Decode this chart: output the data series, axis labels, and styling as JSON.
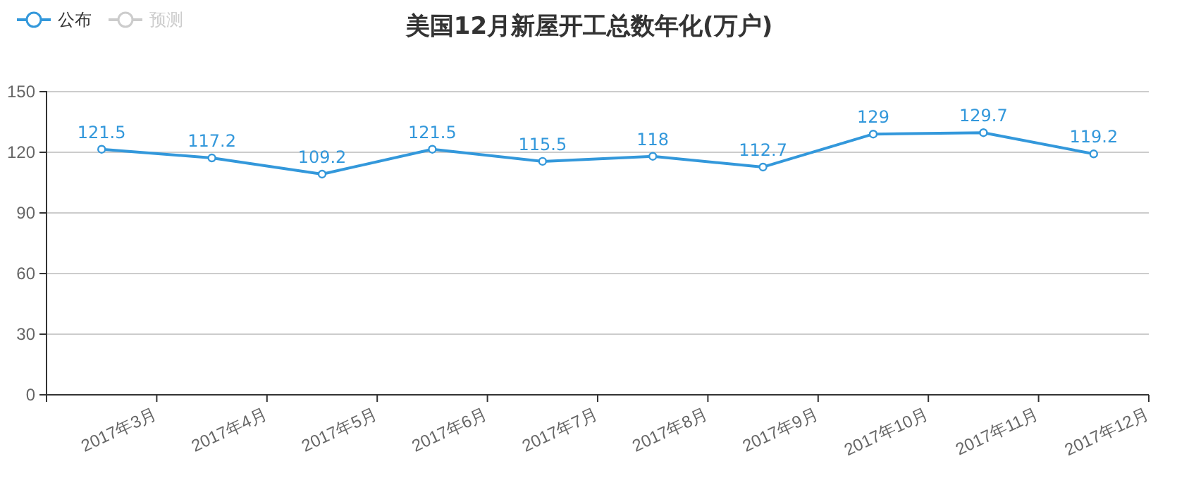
{
  "chart_data": {
    "type": "line",
    "title": "美国12月新屋开工总数年化(万户)",
    "categories": [
      "2017年3月",
      "2017年4月",
      "2017年5月",
      "2017年6月",
      "2017年7月",
      "2017年8月",
      "2017年9月",
      "2017年10月",
      "2017年11月",
      "2017年12月"
    ],
    "series": [
      {
        "name": "公布",
        "color": "#3398db",
        "values": [
          121.5,
          117.2,
          109.2,
          121.5,
          115.5,
          118,
          112.7,
          129,
          129.7,
          119.2
        ]
      },
      {
        "name": "预测",
        "color": "#cccccc",
        "values": [
          null,
          null,
          null,
          null,
          null,
          null,
          null,
          null,
          null,
          null
        ]
      }
    ],
    "ylim": [
      0,
      150
    ],
    "yticks": [
      0,
      30,
      60,
      90,
      120,
      150
    ],
    "grid": "y",
    "legend": "top left",
    "marker": "circle",
    "data_labels": true
  }
}
